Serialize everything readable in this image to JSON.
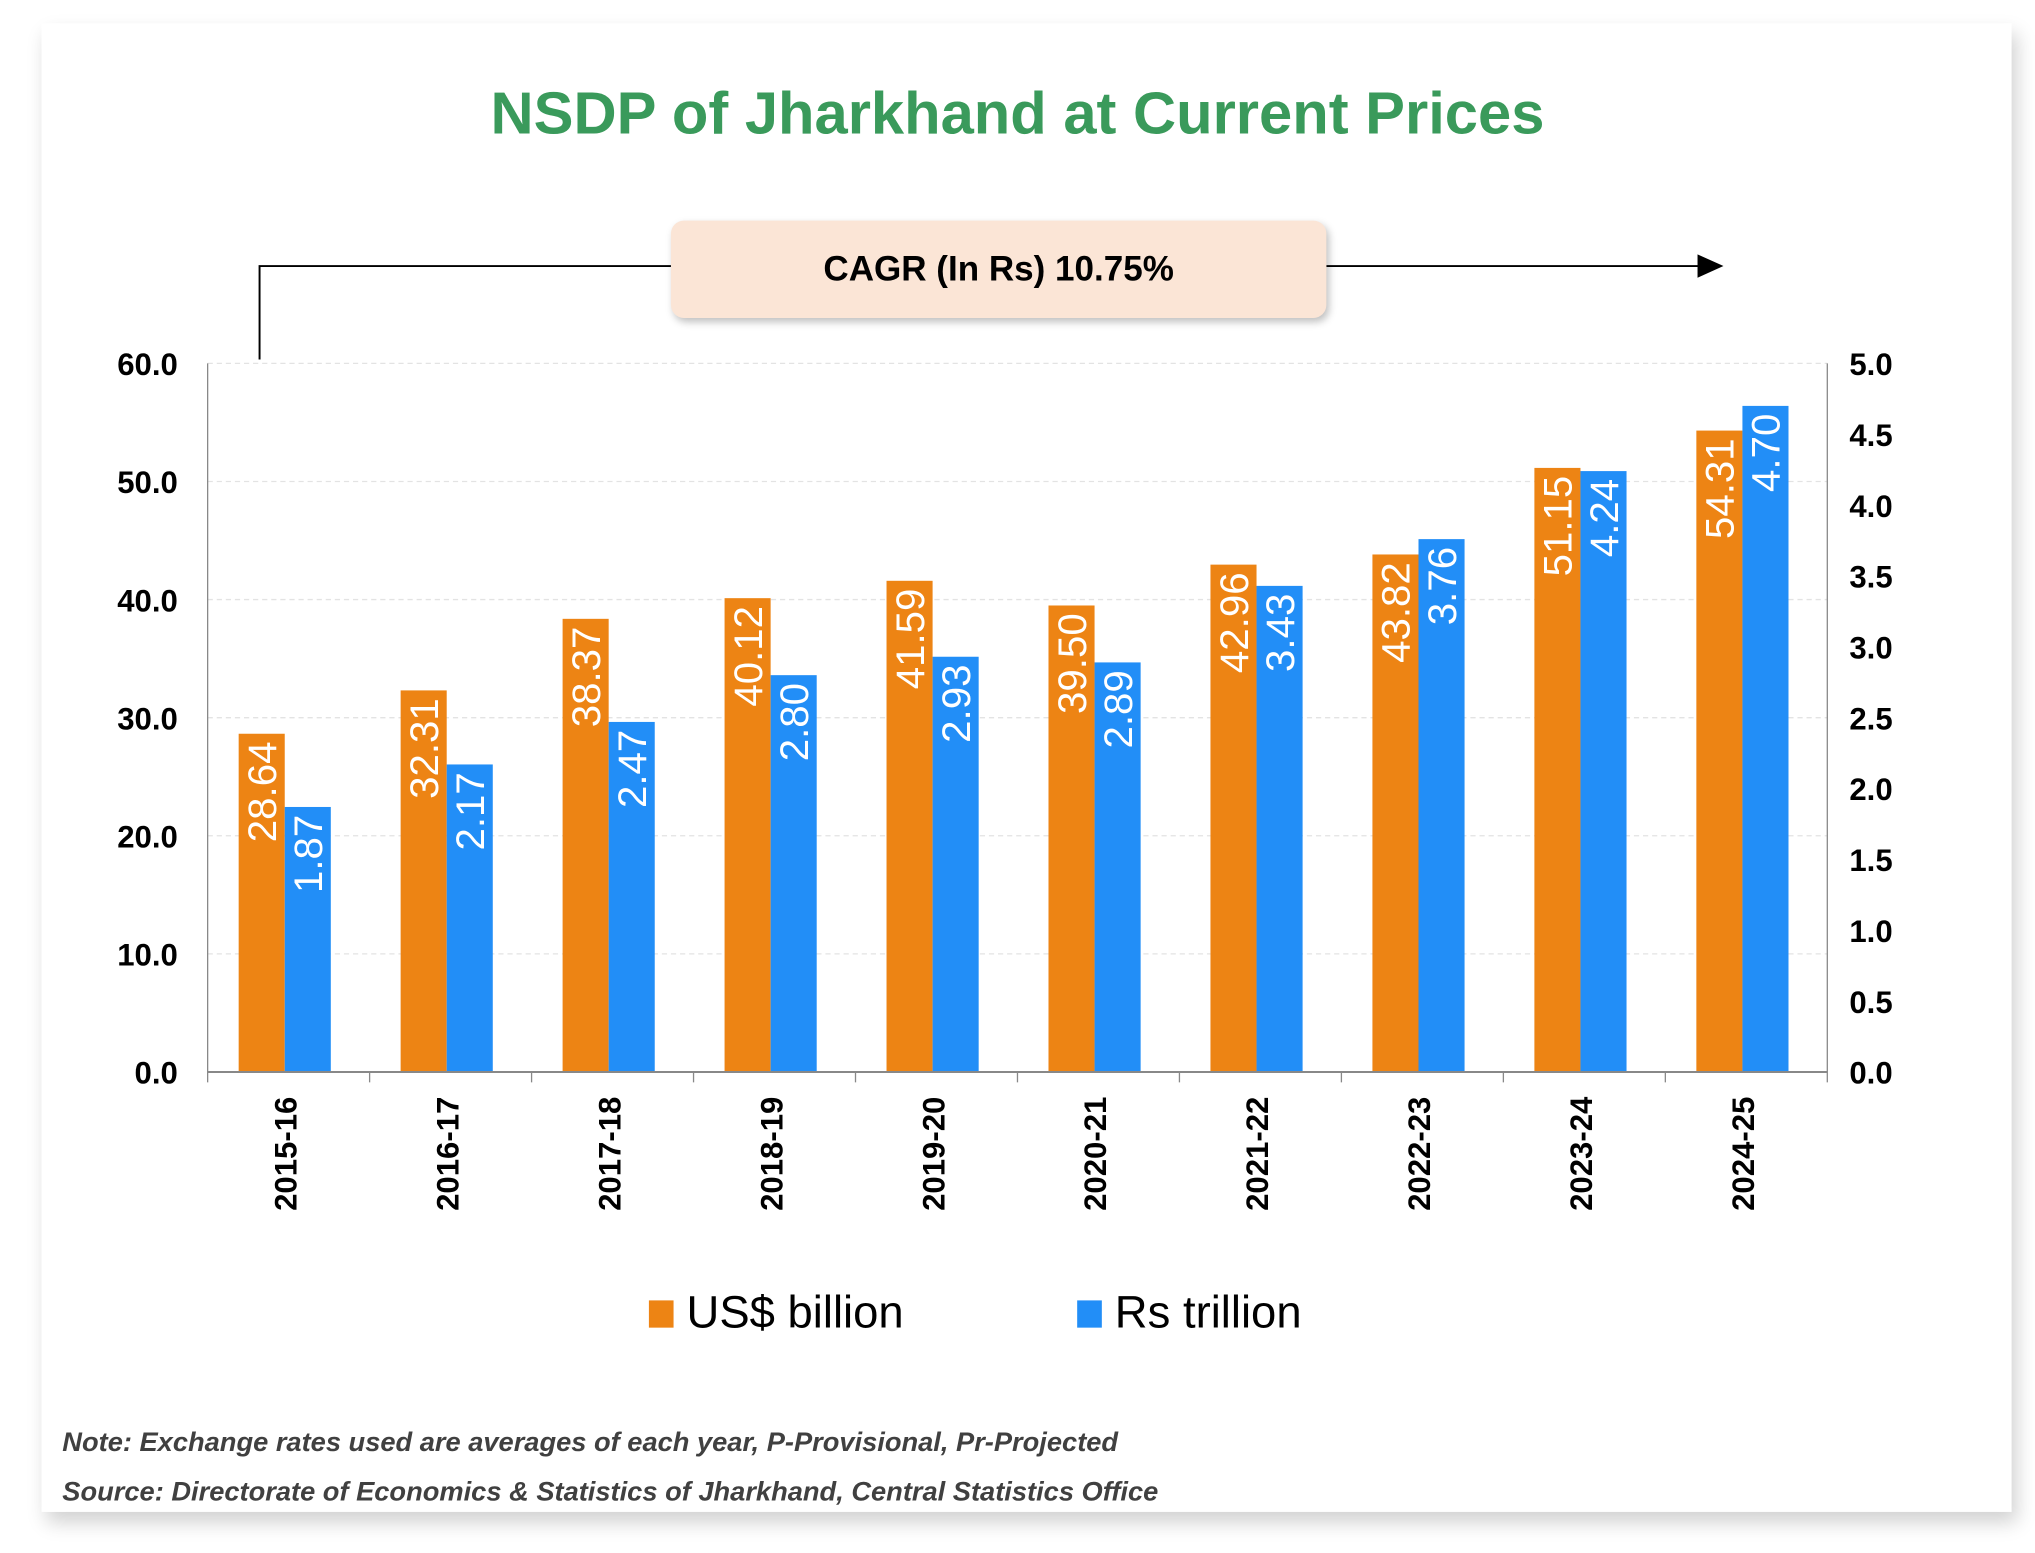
{
  "chart_data": {
    "type": "bar",
    "title": "NSDP of Jharkhand at Current Prices",
    "annotation": "CAGR (In Rs) 10.75%",
    "categories": [
      "2015-16",
      "2016-17",
      "2017-18",
      "2018-19",
      "2019-20",
      "2020-21",
      "2021-22",
      "2022-23",
      "2023-24",
      "2024-25"
    ],
    "series": [
      {
        "name": "US$ billion",
        "axis": "left",
        "color": "#ed8414",
        "values": [
          28.64,
          32.31,
          38.37,
          40.12,
          41.59,
          39.5,
          42.96,
          43.82,
          51.15,
          54.31
        ],
        "labels": [
          "28.64",
          "32.31",
          "38.37",
          "40.12",
          "41.59",
          "39.50",
          "42.96",
          "43.82",
          "51.15",
          "54.31"
        ]
      },
      {
        "name": "Rs trillion",
        "axis": "right",
        "color": "#228ef7",
        "values": [
          1.87,
          2.17,
          2.47,
          2.8,
          2.93,
          2.89,
          3.43,
          3.76,
          4.24,
          4.7
        ],
        "labels": [
          "1.87",
          "2.17",
          "2.47",
          "2.80",
          "2.93",
          "2.89",
          "3.43",
          "3.76",
          "4.24",
          "4.70"
        ]
      }
    ],
    "y_left": {
      "range": [
        0,
        60
      ],
      "ticks": [
        "0.0",
        "10.0",
        "20.0",
        "30.0",
        "40.0",
        "50.0",
        "60.0"
      ]
    },
    "y_right": {
      "range": [
        0,
        5
      ],
      "ticks": [
        "0.0",
        "0.5",
        "1.0",
        "1.5",
        "2.0",
        "2.5",
        "3.0",
        "3.5",
        "4.0",
        "4.5",
        "5.0"
      ]
    },
    "grid": true,
    "legend_position": "bottom",
    "title_color": "#3a9a5b"
  },
  "notes": {
    "note": "Note: Exchange rates used are averages of each year, P-Provisional, Pr-Projected",
    "source": "Source: Directorate of Economics & Statistics of Jharkhand, Central Statistics Office"
  }
}
